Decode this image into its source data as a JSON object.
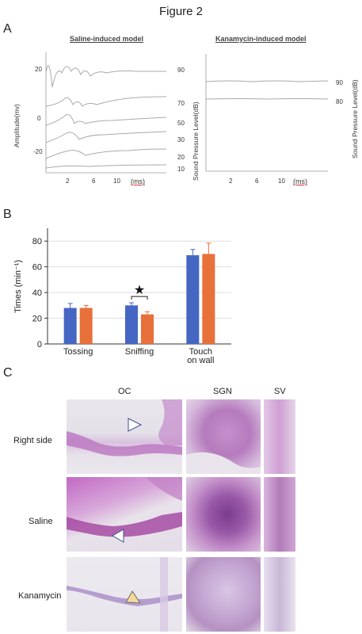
{
  "figure": {
    "title": "Figure 2"
  },
  "panel_a": {
    "letter": "A",
    "left": {
      "title": "Saline-induced model",
      "ylabel": "Amplitude(mv)",
      "y_ticks": [
        "20",
        "0",
        "-20"
      ],
      "x_ticks": [
        "2",
        "6",
        "10"
      ],
      "x_unit": "(ms)",
      "db_labels": [
        "90",
        "70",
        "50",
        "30",
        "20",
        "10"
      ]
    },
    "right": {
      "title": "Kanamycin-induced model",
      "x_ticks": [
        "2",
        "6",
        "10"
      ],
      "x_unit": "(ms)",
      "db_labels": [
        "90",
        "80"
      ]
    },
    "right_axis_label": "Sound Pressure Level(dB)"
  },
  "panel_b": {
    "letter": "B",
    "ylabel": "Times (min⁻¹)",
    "significance": "★",
    "chart_data": {
      "type": "bar",
      "categories": [
        "Tossing",
        "Sniffing",
        "Touch on wall"
      ],
      "category_lines": [
        [
          "Tossing"
        ],
        [
          "Sniffing"
        ],
        [
          "Touch",
          "on wall"
        ]
      ],
      "series": [
        {
          "values": [
            28,
            30,
            69
          ],
          "errors": [
            3.5,
            2,
            4.5
          ],
          "color": "#4566c2"
        },
        {
          "values": [
            28,
            23,
            70
          ],
          "errors": [
            2,
            2,
            8.5
          ],
          "color": "#e8703a"
        }
      ],
      "ylim": [
        0,
        90
      ],
      "yticks": [
        0,
        20,
        40,
        60,
        80
      ],
      "grid": true
    }
  },
  "panel_c": {
    "letter": "C",
    "columns": [
      "OC",
      "SGN",
      "SV"
    ],
    "rows": [
      "Right side",
      "Saline",
      "Kanamycin"
    ]
  }
}
